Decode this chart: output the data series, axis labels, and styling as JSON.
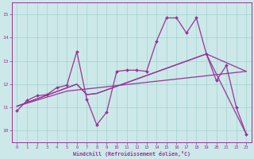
{
  "xlabel": "Windchill (Refroidissement éolien,°C)",
  "background_color": "#cce8e8",
  "line_color": "#993399",
  "xlim": [
    -0.5,
    23.5
  ],
  "ylim": [
    9.5,
    15.5
  ],
  "xticks": [
    0,
    1,
    2,
    3,
    4,
    5,
    6,
    7,
    8,
    9,
    10,
    11,
    12,
    13,
    14,
    15,
    16,
    17,
    18,
    19,
    20,
    21,
    22,
    23
  ],
  "yticks": [
    10,
    11,
    12,
    13,
    14,
    15
  ],
  "line1_x": [
    0,
    1,
    2,
    3,
    4,
    5,
    6,
    7,
    8,
    9,
    10,
    11,
    12,
    13,
    14,
    15,
    16,
    17,
    18,
    19,
    20,
    21,
    22,
    23
  ],
  "line1_y": [
    10.85,
    11.3,
    11.5,
    11.55,
    11.85,
    11.95,
    13.4,
    11.35,
    10.25,
    10.8,
    12.55,
    12.6,
    12.6,
    12.55,
    13.85,
    14.85,
    14.85,
    14.2,
    14.85,
    13.3,
    12.15,
    12.8,
    11.0,
    9.85
  ],
  "line2_x": [
    0,
    5,
    23
  ],
  "line2_y": [
    11.05,
    11.7,
    12.55
  ],
  "line3_x": [
    0,
    6,
    7,
    8,
    19,
    23
  ],
  "line3_y": [
    11.05,
    12.0,
    11.55,
    11.6,
    13.3,
    9.85
  ],
  "line4_x": [
    0,
    6,
    7,
    8,
    19,
    23
  ],
  "line4_y": [
    11.05,
    12.0,
    11.55,
    11.6,
    13.3,
    12.55
  ]
}
